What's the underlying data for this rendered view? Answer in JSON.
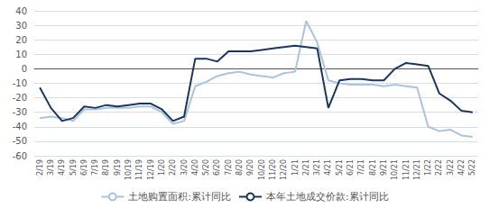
{
  "chart_data": {
    "type": "line",
    "categories": [
      "2/19",
      "3/19",
      "4/19",
      "5/19",
      "6/19",
      "7/19",
      "8/19",
      "9/19",
      "10/19",
      "11/19",
      "12/19",
      "1/20",
      "2/20",
      "3/20",
      "4/20",
      "5/20",
      "6/20",
      "7/20",
      "8/20",
      "9/20",
      "10/20",
      "11/20",
      "12/20",
      "1/21",
      "2/21",
      "3/21",
      "4/21",
      "5/21",
      "6/21",
      "7/21",
      "8/21",
      "9/21",
      "10/21",
      "11/21",
      "12/21",
      "1/22",
      "2/22",
      "3/22",
      "4/22",
      "5/22"
    ],
    "series": [
      {
        "name": "土地购置面积:累计同比",
        "color": "#aac3e0",
        "values": [
          -34,
          -33,
          -34,
          -36,
          -28,
          -28,
          -27,
          -27,
          -27,
          -26,
          -26,
          -30,
          -38,
          -36,
          -12,
          -9,
          -5,
          -3,
          -2,
          -4,
          -5,
          -6,
          -3,
          -2,
          33,
          18,
          -8,
          -10,
          -11,
          -11,
          -11,
          -12,
          -11,
          -12,
          -13,
          -40,
          -43,
          -42,
          -46,
          -47
        ]
      },
      {
        "name": "本年土地成交价款:累计同比",
        "color": "#1a3560",
        "values": [
          -13,
          -27,
          -36,
          -34,
          -26,
          -27,
          -25,
          -26,
          -25,
          -24,
          -24,
          -28,
          -36,
          -33,
          7,
          7,
          5,
          12,
          12,
          12,
          13,
          14,
          15,
          16,
          15,
          14,
          -27,
          -8,
          -7,
          -7,
          -8,
          -8,
          0,
          4,
          3,
          2,
          -17,
          -22,
          -29,
          -30
        ]
      }
    ],
    "ylim": [
      -60,
      40
    ],
    "yticks": [
      -60,
      -50,
      -40,
      -30,
      -20,
      -10,
      0,
      10,
      20,
      30,
      40
    ],
    "grid": true,
    "legend": "bottom"
  }
}
